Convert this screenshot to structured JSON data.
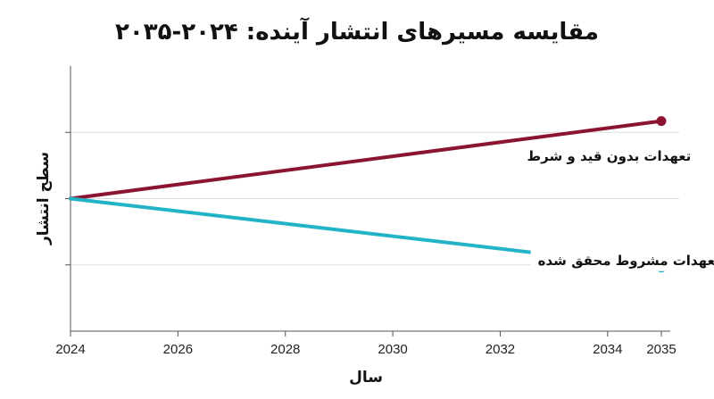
{
  "chart_data": {
    "type": "line",
    "title": "مقایسه مسیرهای انتشار آینده: ۲۰۲۴-۲۰۳۵",
    "xlabel": "سال",
    "ylabel": "سطح انتشار",
    "x_ticks": [
      2024,
      2026,
      2028,
      2030,
      2032,
      2034,
      2035
    ],
    "xlim": [
      2024,
      2035
    ],
    "ylim": [
      -2,
      2
    ],
    "y_ticks": [
      -1,
      0,
      1
    ],
    "grid": true,
    "series": [
      {
        "name": "تعهدات بدون قید و شرط",
        "color": "#8b1530",
        "x": [
          2024,
          2035
        ],
        "y": [
          0,
          1.17
        ]
      },
      {
        "name": "تعهدات مشروط محقق شده",
        "color": "#22b4c6",
        "x": [
          2024,
          2035
        ],
        "y": [
          0,
          -1.04
        ]
      }
    ]
  }
}
